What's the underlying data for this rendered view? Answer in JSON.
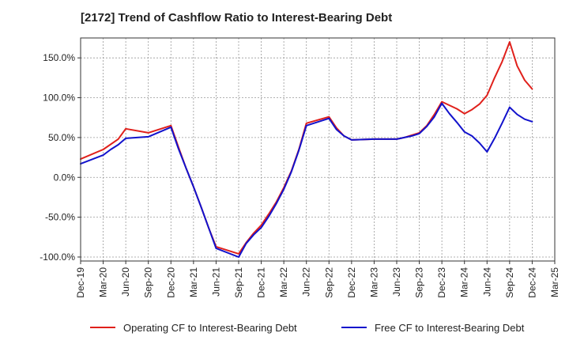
{
  "chart_data": {
    "type": "line",
    "title": "[2172]  Trend of Cashflow Ratio to Interest-Bearing Debt",
    "xlabel": "",
    "ylabel": "",
    "ylim": [
      -105,
      175
    ],
    "yticks": [
      -100,
      -50,
      0,
      50,
      100,
      150
    ],
    "ytick_labels": [
      "-100.0%",
      "-50.0%",
      "0.0%",
      "50.0%",
      "100.0%",
      "150.0%"
    ],
    "xlim_index": [
      0,
      63
    ],
    "xtick_labels": [
      "Dec-19",
      "Mar-20",
      "Jun-20",
      "Sep-20",
      "Dec-20",
      "Mar-21",
      "Jun-21",
      "Sep-21",
      "Dec-21",
      "Mar-22",
      "Jun-22",
      "Sep-22",
      "Dec-22",
      "Mar-23",
      "Jun-23",
      "Sep-23",
      "Dec-23",
      "Mar-24",
      "Jun-24",
      "Sep-24",
      "Dec-24",
      "Mar-25"
    ],
    "xtick_index": [
      0,
      3,
      6,
      9,
      12,
      15,
      18,
      21,
      24,
      27,
      30,
      33,
      36,
      39,
      42,
      45,
      48,
      51,
      54,
      57,
      60,
      63
    ],
    "grid": true,
    "legend_position": "bottom",
    "series": [
      {
        "name": "Operating CF to Interest-Bearing Debt",
        "color": "#e0201b",
        "x": [
          0,
          3,
          5,
          6,
          9,
          12,
          13,
          14,
          15,
          16,
          17,
          18,
          21,
          22,
          23,
          24,
          25,
          26,
          27,
          28,
          29,
          30,
          33,
          34,
          35,
          36,
          39,
          42,
          43,
          44,
          45,
          46,
          47,
          48,
          50,
          51,
          52,
          53,
          54,
          55,
          56,
          57,
          58,
          59,
          60
        ],
        "y": [
          23,
          35,
          48,
          61,
          56,
          65,
          38,
          12,
          -12,
          -37,
          -63,
          -87,
          -96,
          -82,
          -70,
          -60,
          -46,
          -31,
          -13,
          8,
          35,
          68,
          76,
          62,
          52,
          47,
          48,
          48,
          50,
          53,
          56,
          65,
          79,
          95,
          86,
          80,
          85,
          92,
          103,
          125,
          145,
          170,
          140,
          122,
          111
        ]
      },
      {
        "name": "Free CF to Interest-Bearing Debt",
        "color": "#1212cc",
        "x": [
          0,
          3,
          4,
          5,
          6,
          9,
          12,
          13,
          14,
          15,
          16,
          17,
          18,
          21,
          22,
          23,
          24,
          25,
          26,
          27,
          28,
          29,
          30,
          33,
          34,
          35,
          36,
          39,
          42,
          43,
          44,
          45,
          46,
          47,
          48,
          49,
          50,
          51,
          52,
          53,
          54,
          55,
          56,
          57,
          58,
          59,
          60
        ],
        "y": [
          17,
          28,
          35,
          41,
          49,
          51,
          63,
          36,
          12,
          -12,
          -37,
          -63,
          -89,
          -100,
          -83,
          -72,
          -63,
          -49,
          -33,
          -15,
          7,
          34,
          65,
          74,
          60,
          52,
          47,
          48,
          48,
          50,
          52,
          55,
          64,
          76,
          93,
          80,
          69,
          57,
          52,
          43,
          32,
          49,
          68,
          88,
          79,
          73,
          70
        ]
      }
    ]
  }
}
